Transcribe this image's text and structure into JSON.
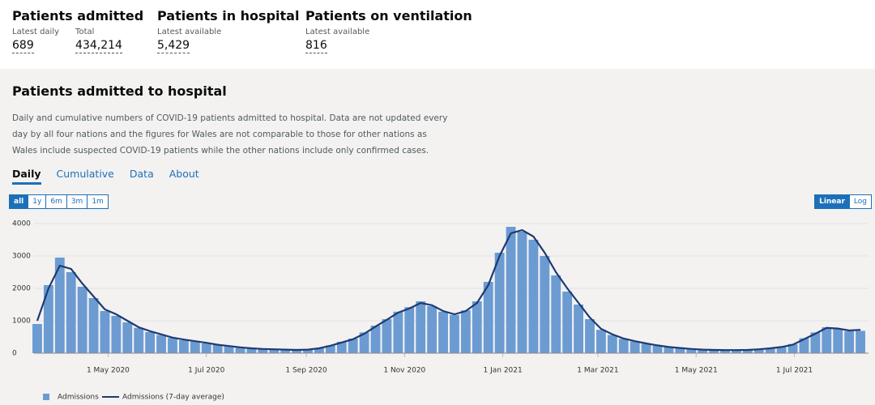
{
  "header": {
    "stats": [
      {
        "title": "Patients admitted",
        "items": [
          {
            "label": "Latest daily",
            "value": "689"
          },
          {
            "label": "Total",
            "value": "434,214"
          }
        ]
      },
      {
        "title": "Patients in hospital",
        "items": [
          {
            "label": "Latest available",
            "value": "5,429"
          }
        ]
      },
      {
        "title": "Patients on ventilation",
        "items": [
          {
            "label": "Latest available",
            "value": "816"
          }
        ]
      }
    ]
  },
  "card": {
    "title": "Patients admitted to hospital",
    "description": "Daily and cumulative numbers of COVID-19 patients admitted to hospital. Data are not updated every day by all four nations and the figures for Wales are not comparable to those for other nations as Wales include suspected COVID-19 patients while the other nations include only confirmed cases.",
    "tabs": [
      "Daily",
      "Cumulative",
      "Data",
      "About"
    ],
    "ranges": [
      "all",
      "1y",
      "6m",
      "3m",
      "1m"
    ],
    "scales": [
      "Linear",
      "Log"
    ]
  },
  "chart_data": {
    "type": "bar-line",
    "x": [
      "2020-03-18",
      "2020-03-25",
      "2020-04-01",
      "2020-04-08",
      "2020-04-15",
      "2020-04-22",
      "2020-04-29",
      "2020-05-06",
      "2020-05-13",
      "2020-05-20",
      "2020-05-27",
      "2020-06-03",
      "2020-06-10",
      "2020-06-17",
      "2020-06-24",
      "2020-07-01",
      "2020-07-08",
      "2020-07-15",
      "2020-07-22",
      "2020-07-29",
      "2020-08-05",
      "2020-08-12",
      "2020-08-19",
      "2020-08-26",
      "2020-09-02",
      "2020-09-09",
      "2020-09-16",
      "2020-09-23",
      "2020-09-30",
      "2020-10-07",
      "2020-10-14",
      "2020-10-21",
      "2020-10-28",
      "2020-11-04",
      "2020-11-11",
      "2020-11-18",
      "2020-11-25",
      "2020-12-02",
      "2020-12-09",
      "2020-12-16",
      "2020-12-23",
      "2020-12-30",
      "2021-01-06",
      "2021-01-13",
      "2021-01-20",
      "2021-01-27",
      "2021-02-03",
      "2021-02-10",
      "2021-02-17",
      "2021-02-24",
      "2021-03-03",
      "2021-03-10",
      "2021-03-17",
      "2021-03-24",
      "2021-03-31",
      "2021-04-07",
      "2021-04-14",
      "2021-04-21",
      "2021-04-28",
      "2021-05-05",
      "2021-05-12",
      "2021-05-19",
      "2021-05-26",
      "2021-06-02",
      "2021-06-09",
      "2021-06-16",
      "2021-06-23",
      "2021-06-30",
      "2021-07-07",
      "2021-07-14",
      "2021-07-21",
      "2021-07-28",
      "2021-08-04",
      "2021-08-11"
    ],
    "series": [
      {
        "name": "Admissions",
        "color": "#6c9bd2",
        "values": [
          900,
          2100,
          2950,
          2500,
          2050,
          1700,
          1300,
          1150,
          950,
          780,
          650,
          560,
          470,
          400,
          360,
          300,
          250,
          210,
          170,
          145,
          125,
          115,
          105,
          95,
          115,
          160,
          240,
          350,
          450,
          640,
          850,
          1050,
          1280,
          1420,
          1600,
          1450,
          1280,
          1180,
          1320,
          1600,
          2200,
          3100,
          3900,
          3750,
          3500,
          3000,
          2400,
          1900,
          1500,
          1050,
          720,
          560,
          440,
          360,
          290,
          230,
          185,
          150,
          125,
          105,
          95,
          90,
          95,
          100,
          125,
          160,
          200,
          280,
          460,
          640,
          800,
          740,
          680,
          689
        ]
      },
      {
        "name": "Admissions (7-day average)",
        "color": "#1d3b72",
        "values": [
          1000,
          2000,
          2700,
          2600,
          2150,
          1750,
          1350,
          1200,
          1000,
          800,
          680,
          580,
          480,
          420,
          370,
          320,
          260,
          220,
          180,
          150,
          130,
          120,
          110,
          100,
          110,
          150,
          230,
          330,
          430,
          600,
          820,
          1030,
          1250,
          1380,
          1550,
          1480,
          1300,
          1200,
          1300,
          1550,
          2100,
          3000,
          3700,
          3800,
          3600,
          3100,
          2500,
          2000,
          1550,
          1100,
          750,
          580,
          450,
          370,
          300,
          240,
          190,
          160,
          130,
          110,
          100,
          95,
          95,
          100,
          120,
          150,
          190,
          260,
          430,
          600,
          780,
          760,
          700,
          720
        ]
      }
    ],
    "xlim": [
      "2020-03-14",
      "2021-08-16"
    ],
    "xticks": [
      {
        "value": "2020-05-01",
        "label": "1 May 2020"
      },
      {
        "value": "2020-07-01",
        "label": "1 Jul 2020"
      },
      {
        "value": "2020-09-01",
        "label": "1 Sep 2020"
      },
      {
        "value": "2020-11-01",
        "label": "1 Nov 2020"
      },
      {
        "value": "2021-01-01",
        "label": "1 Jan 2021"
      },
      {
        "value": "2021-03-01",
        "label": "1 Mar 2021"
      },
      {
        "value": "2021-05-01",
        "label": "1 May 2021"
      },
      {
        "value": "2021-07-01",
        "label": "1 Jul 2021"
      }
    ],
    "ylim": [
      0,
      4250
    ],
    "yticks": [
      0,
      1000,
      2000,
      3000,
      4000
    ],
    "grid": true
  }
}
